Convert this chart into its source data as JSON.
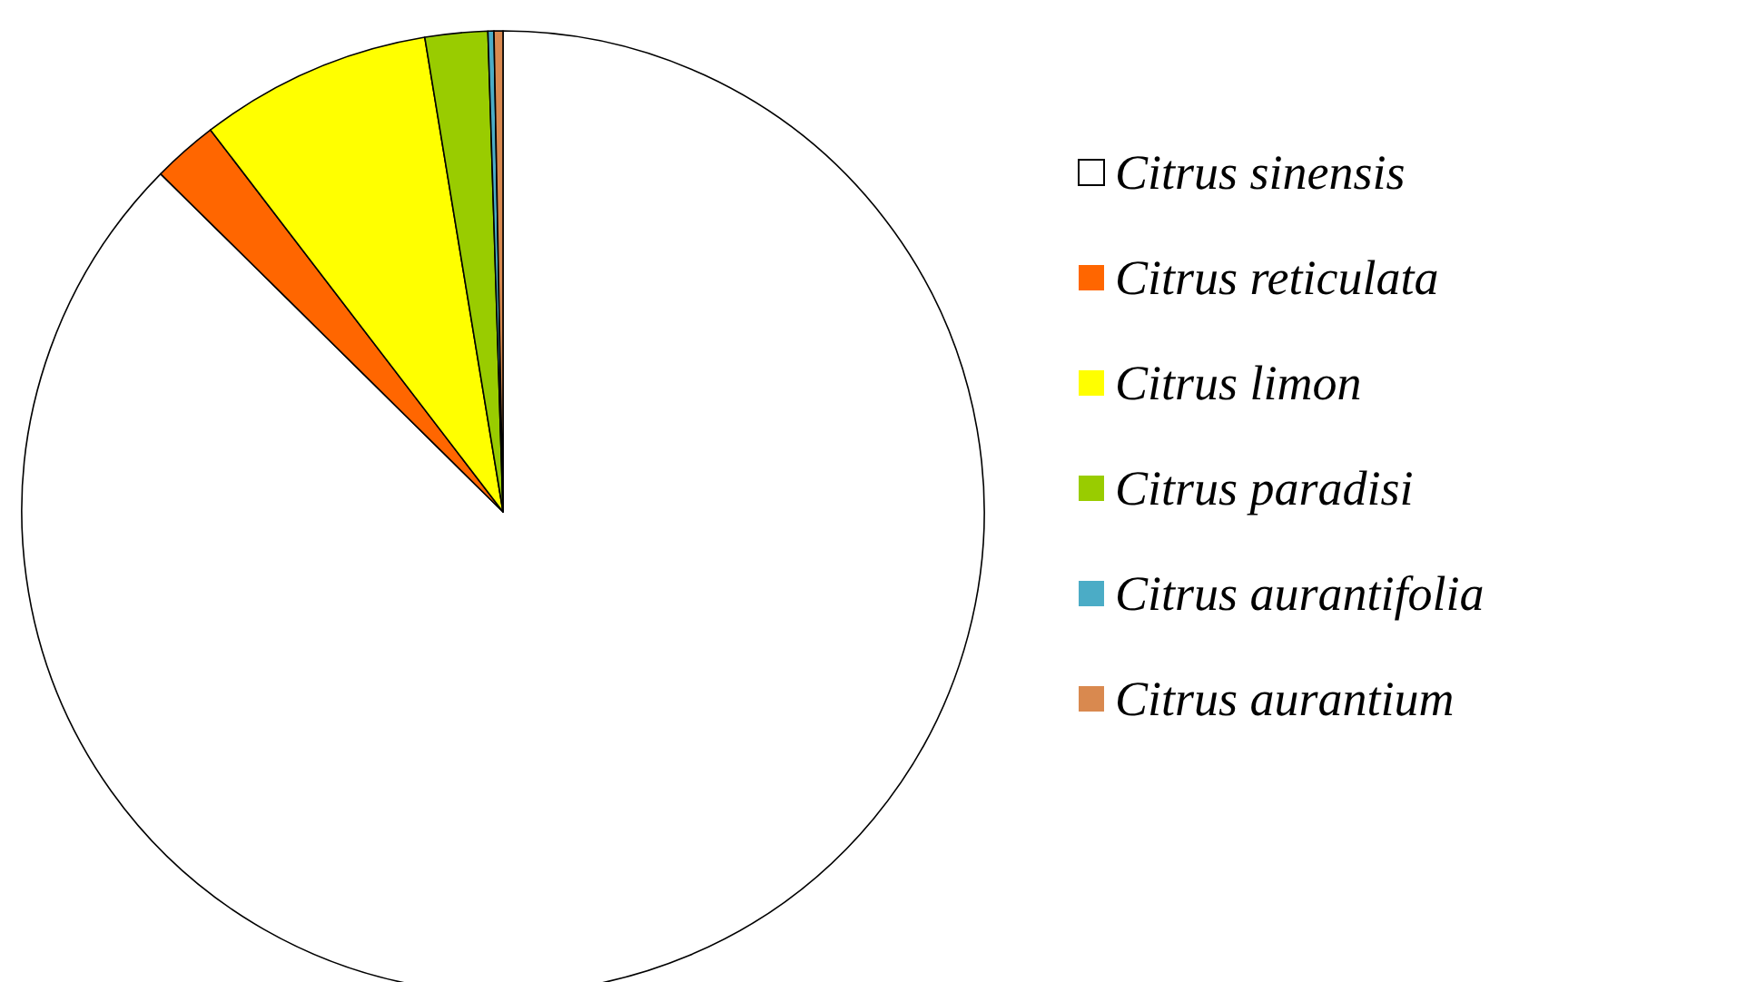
{
  "chart_data": {
    "type": "pie",
    "categories": [
      "Citrus sinensis",
      "Citrus reticulata",
      "Citrus limon",
      "Citrus paradisi",
      "Citrus aurantifolia",
      "Citrus aurantium"
    ],
    "values": [
      87.4,
      2.2,
      7.8,
      2.1,
      0.2,
      0.3
    ],
    "colors": [
      "#ffffff",
      "#ff6600",
      "#ffff00",
      "#99cc00",
      "#4bacc6",
      "#d9894f"
    ],
    "legend": "right"
  }
}
